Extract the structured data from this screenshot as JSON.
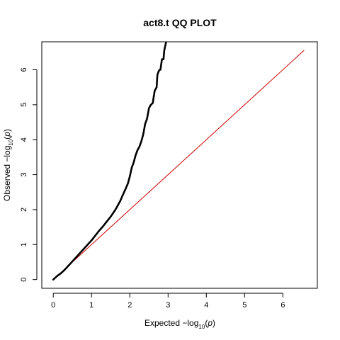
{
  "chart_data": {
    "type": "line",
    "title": "act8.t QQ PLOT",
    "xlabel": {
      "prefix": "Expected ",
      "minus": "−",
      "log": "log",
      "base": "10",
      "var": "p"
    },
    "ylabel": {
      "prefix": "Observed ",
      "minus": "−",
      "log": "log",
      "base": "10",
      "var": "p"
    },
    "xlim": [
      -0.3,
      6.9
    ],
    "ylim": [
      -0.25,
      6.8
    ],
    "x_ticks": [
      "0",
      "1",
      "2",
      "3",
      "4",
      "5",
      "6"
    ],
    "y_ticks": [
      "0",
      "1",
      "2",
      "3",
      "4",
      "5",
      "6"
    ],
    "grid": false,
    "colors": {
      "observed": "#000000",
      "diagonal": "#cc0000"
    },
    "series": [
      {
        "role": "observed",
        "x": [
          0.0,
          0.1,
          0.2,
          0.3,
          0.4,
          0.5,
          0.6,
          0.7,
          0.8,
          0.9,
          1.0,
          1.1,
          1.2,
          1.3,
          1.4,
          1.5,
          1.6,
          1.65,
          1.7,
          1.75,
          1.8,
          1.85,
          1.9,
          1.95,
          2.0,
          2.05,
          2.1,
          2.15,
          2.2,
          2.25,
          2.3,
          2.35,
          2.4,
          2.45,
          2.5,
          2.55,
          2.6,
          2.62,
          2.65,
          2.7,
          2.72,
          2.75,
          2.78,
          2.8,
          2.84,
          2.88,
          2.9,
          2.93,
          2.95
        ],
        "y": [
          0.0,
          0.1,
          0.18,
          0.28,
          0.4,
          0.52,
          0.64,
          0.76,
          0.88,
          1.0,
          1.12,
          1.26,
          1.4,
          1.52,
          1.66,
          1.8,
          1.96,
          2.05,
          2.15,
          2.25,
          2.38,
          2.5,
          2.62,
          2.75,
          2.95,
          3.2,
          3.35,
          3.55,
          3.7,
          3.8,
          3.95,
          4.15,
          4.45,
          4.6,
          4.9,
          5.0,
          5.05,
          5.2,
          5.4,
          5.5,
          5.85,
          5.95,
          6.0,
          6.0,
          6.3,
          6.3,
          6.55,
          6.7,
          6.8
        ]
      },
      {
        "role": "diagonal",
        "x": [
          0,
          6.55
        ],
        "y": [
          0,
          6.55
        ]
      }
    ]
  }
}
